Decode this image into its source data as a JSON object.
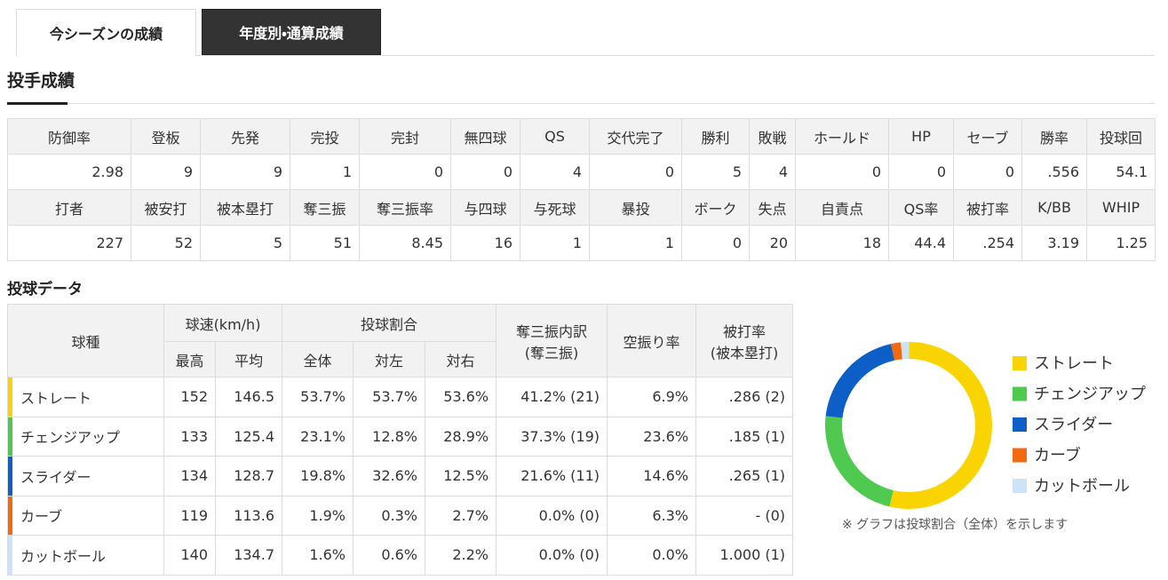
{
  "tabs": [
    "今シーズンの成績",
    "年度別・通算成績"
  ],
  "pitching_stats": {
    "title": "投手成績",
    "rows": [
      [
        "防御率",
        "登板",
        "先発",
        "完投",
        "完封",
        "無四球",
        "QS",
        "交代完了",
        "勝利",
        "敗戦",
        "ホールド",
        "HP",
        "セーブ",
        "勝率",
        "投球回"
      ],
      [
        "2.98",
        "9",
        "9",
        "1",
        "0",
        "0",
        "4",
        "0",
        "5",
        "4",
        "0",
        "0",
        "0",
        ".556",
        "54.1"
      ],
      [
        "打者",
        "被安打",
        "被本塁打",
        "奪三振",
        "奪三振率",
        "与四球",
        "与死球",
        "暴投",
        "ボーク",
        "失点",
        "自責点",
        "QS率",
        "被打率",
        "K/BB",
        "WHIP"
      ],
      [
        "227",
        "52",
        "5",
        "51",
        "8.45",
        "16",
        "1",
        "1",
        "0",
        "20",
        "18",
        "44.4",
        ".254",
        "3.19",
        "1.25"
      ]
    ]
  },
  "pitch_data": {
    "title": "投球データ",
    "header": [
      {
        "lines": [
          "球種"
        ]
      },
      {
        "lines": [
          "球速(km/h)"
        ],
        "sub": [
          "最高",
          "平均"
        ]
      },
      {
        "lines": [
          "投球割合"
        ],
        "sub": [
          "全体",
          "対左",
          "対右"
        ]
      },
      {
        "lines": [
          "奪三振内訳",
          "(奪三振)"
        ]
      },
      {
        "lines": [
          "空振り率"
        ]
      },
      {
        "lines": [
          "被打率",
          "(被本塁打)"
        ]
      }
    ],
    "rows": [
      {
        "name": "ストレート",
        "cells": [
          "152",
          "146.5",
          "53.7%",
          "53.7%",
          "53.6%",
          "41.2% (21)",
          "6.9%",
          ".286 (2)"
        ]
      },
      {
        "name": "チェンジアップ",
        "cells": [
          "133",
          "125.4",
          "23.1%",
          "12.8%",
          "28.9%",
          "37.3% (19)",
          "23.6%",
          ".185 (1)"
        ]
      },
      {
        "name": "スライダー",
        "cells": [
          "134",
          "128.7",
          "19.8%",
          "32.6%",
          "12.5%",
          "21.6% (11)",
          "14.6%",
          ".265 (1)"
        ]
      },
      {
        "name": "カーブ",
        "cells": [
          "119",
          "113.6",
          "1.9%",
          "0.3%",
          "2.7%",
          "0.0% (0)",
          "6.3%",
          "- (0)"
        ]
      },
      {
        "name": "カットボール",
        "cells": [
          "140",
          "134.7",
          "1.6%",
          "0.6%",
          "2.2%",
          "0.0% (0)",
          "0.0%",
          "1.000 (1)"
        ]
      }
    ]
  },
  "chart_data": {
    "type": "pie",
    "donut": true,
    "categories": [
      "ストレート",
      "チェンジアップ",
      "スライダー",
      "カーブ",
      "カットボール"
    ],
    "values": [
      53.7,
      23.1,
      19.8,
      1.9,
      1.6
    ],
    "colors": [
      "#f9d400",
      "#4fc94f",
      "#0b5fc7",
      "#f26a10",
      "#cde3f7"
    ],
    "note": "※ グラフは投球割合（全体）を示します"
  }
}
